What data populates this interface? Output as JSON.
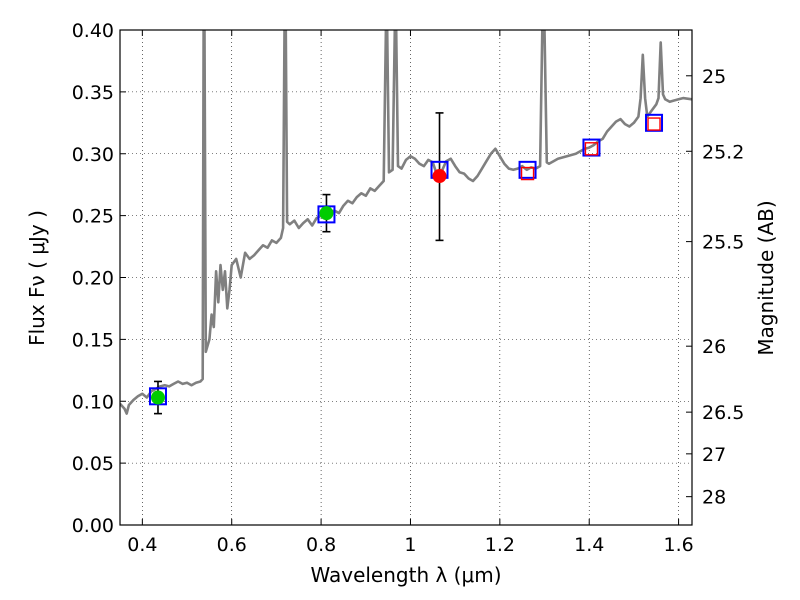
{
  "chart_data": {
    "type": "line",
    "xlabel": "Wavelength  λ (μm)",
    "ylabel_left": "Flux  Fν  ( μJy )",
    "ylabel_right": "Magnitude (AB)",
    "xlim": [
      0.35,
      1.63
    ],
    "ylim": [
      0.0,
      0.4
    ],
    "grid": true,
    "x_ticks": [
      0.4,
      0.6,
      0.8,
      1.0,
      1.2,
      1.4,
      1.6
    ],
    "x_tick_labels": [
      "0.4",
      "0.6",
      "0.8",
      "1",
      "1.2",
      "1.4",
      "1.6"
    ],
    "y_ticks": [
      0.0,
      0.05,
      0.1,
      0.15,
      0.2,
      0.25,
      0.3,
      0.35,
      0.4
    ],
    "y_tick_labels": [
      "0.00",
      "0.05",
      "0.10",
      "0.15",
      "0.20",
      "0.25",
      "0.30",
      "0.35",
      "0.40"
    ],
    "right_ticks": [
      {
        "label": "25",
        "flux": 0.363
      },
      {
        "label": "25.2",
        "flux": 0.302
      },
      {
        "label": "25.5",
        "flux": 0.229
      },
      {
        "label": "26",
        "flux": 0.1445
      },
      {
        "label": "26.5",
        "flux": 0.0912
      },
      {
        "label": "27",
        "flux": 0.0575
      },
      {
        "label": "28",
        "flux": 0.0229
      }
    ],
    "spectrum": {
      "color": "#808080",
      "points": [
        [
          0.35,
          0.098
        ],
        [
          0.36,
          0.094
        ],
        [
          0.365,
          0.09
        ],
        [
          0.37,
          0.097
        ],
        [
          0.38,
          0.101
        ],
        [
          0.39,
          0.104
        ],
        [
          0.4,
          0.106
        ],
        [
          0.41,
          0.103
        ],
        [
          0.42,
          0.108
        ],
        [
          0.43,
          0.11
        ],
        [
          0.44,
          0.112
        ],
        [
          0.45,
          0.113
        ],
        [
          0.46,
          0.112
        ],
        [
          0.47,
          0.114
        ],
        [
          0.48,
          0.116
        ],
        [
          0.49,
          0.114
        ],
        [
          0.5,
          0.115
        ],
        [
          0.51,
          0.113
        ],
        [
          0.52,
          0.115
        ],
        [
          0.53,
          0.116
        ],
        [
          0.535,
          0.118
        ],
        [
          0.537,
          0.4
        ],
        [
          0.539,
          0.4
        ],
        [
          0.542,
          0.14
        ],
        [
          0.55,
          0.15
        ],
        [
          0.555,
          0.17
        ],
        [
          0.56,
          0.16
        ],
        [
          0.565,
          0.205
        ],
        [
          0.57,
          0.18
        ],
        [
          0.575,
          0.21
        ],
        [
          0.58,
          0.19
        ],
        [
          0.585,
          0.205
        ],
        [
          0.59,
          0.175
        ],
        [
          0.595,
          0.19
        ],
        [
          0.6,
          0.21
        ],
        [
          0.61,
          0.215
        ],
        [
          0.62,
          0.2
        ],
        [
          0.63,
          0.22
        ],
        [
          0.64,
          0.215
        ],
        [
          0.65,
          0.218
        ],
        [
          0.66,
          0.222
        ],
        [
          0.67,
          0.226
        ],
        [
          0.68,
          0.224
        ],
        [
          0.69,
          0.23
        ],
        [
          0.7,
          0.228
        ],
        [
          0.71,
          0.232
        ],
        [
          0.715,
          0.24
        ],
        [
          0.718,
          0.4
        ],
        [
          0.721,
          0.4
        ],
        [
          0.724,
          0.245
        ],
        [
          0.73,
          0.243
        ],
        [
          0.74,
          0.246
        ],
        [
          0.75,
          0.24
        ],
        [
          0.76,
          0.244
        ],
        [
          0.77,
          0.247
        ],
        [
          0.78,
          0.242
        ],
        [
          0.79,
          0.248
        ],
        [
          0.8,
          0.25
        ],
        [
          0.81,
          0.252
        ],
        [
          0.82,
          0.253
        ],
        [
          0.83,
          0.254
        ],
        [
          0.84,
          0.252
        ],
        [
          0.85,
          0.258
        ],
        [
          0.86,
          0.262
        ],
        [
          0.87,
          0.26
        ],
        [
          0.88,
          0.265
        ],
        [
          0.89,
          0.268
        ],
        [
          0.9,
          0.266
        ],
        [
          0.91,
          0.272
        ],
        [
          0.92,
          0.27
        ],
        [
          0.93,
          0.274
        ],
        [
          0.94,
          0.278
        ],
        [
          0.945,
          0.4
        ],
        [
          0.948,
          0.4
        ],
        [
          0.952,
          0.285
        ],
        [
          0.96,
          0.287
        ],
        [
          0.965,
          0.4
        ],
        [
          0.968,
          0.4
        ],
        [
          0.972,
          0.29
        ],
        [
          0.98,
          0.288
        ],
        [
          0.99,
          0.295
        ],
        [
          1.0,
          0.298
        ],
        [
          1.01,
          0.296
        ],
        [
          1.02,
          0.292
        ],
        [
          1.03,
          0.29
        ],
        [
          1.04,
          0.295
        ],
        [
          1.05,
          0.293
        ],
        [
          1.06,
          0.282
        ],
        [
          1.07,
          0.286
        ],
        [
          1.08,
          0.294
        ],
        [
          1.09,
          0.296
        ],
        [
          1.1,
          0.29
        ],
        [
          1.11,
          0.285
        ],
        [
          1.12,
          0.284
        ],
        [
          1.13,
          0.28
        ],
        [
          1.14,
          0.278
        ],
        [
          1.15,
          0.282
        ],
        [
          1.16,
          0.288
        ],
        [
          1.17,
          0.294
        ],
        [
          1.18,
          0.3
        ],
        [
          1.19,
          0.304
        ],
        [
          1.2,
          0.298
        ],
        [
          1.21,
          0.292
        ],
        [
          1.22,
          0.288
        ],
        [
          1.23,
          0.287
        ],
        [
          1.24,
          0.288
        ],
        [
          1.25,
          0.29
        ],
        [
          1.26,
          0.287
        ],
        [
          1.27,
          0.289
        ],
        [
          1.28,
          0.288
        ],
        [
          1.29,
          0.29
        ],
        [
          1.295,
          0.4
        ],
        [
          1.3,
          0.4
        ],
        [
          1.305,
          0.293
        ],
        [
          1.31,
          0.292
        ],
        [
          1.32,
          0.294
        ],
        [
          1.33,
          0.296
        ],
        [
          1.34,
          0.297
        ],
        [
          1.35,
          0.298
        ],
        [
          1.36,
          0.299
        ],
        [
          1.37,
          0.3
        ],
        [
          1.38,
          0.302
        ],
        [
          1.39,
          0.304
        ],
        [
          1.4,
          0.305
        ],
        [
          1.41,
          0.307
        ],
        [
          1.42,
          0.31
        ],
        [
          1.43,
          0.312
        ],
        [
          1.44,
          0.318
        ],
        [
          1.45,
          0.322
        ],
        [
          1.46,
          0.326
        ],
        [
          1.47,
          0.328
        ],
        [
          1.48,
          0.324
        ],
        [
          1.49,
          0.322
        ],
        [
          1.5,
          0.325
        ],
        [
          1.51,
          0.33
        ],
        [
          1.515,
          0.345
        ],
        [
          1.52,
          0.38
        ],
        [
          1.525,
          0.345
        ],
        [
          1.53,
          0.33
        ],
        [
          1.54,
          0.335
        ],
        [
          1.55,
          0.34
        ],
        [
          1.555,
          0.345
        ],
        [
          1.56,
          0.39
        ],
        [
          1.565,
          0.348
        ],
        [
          1.57,
          0.344
        ],
        [
          1.58,
          0.342
        ],
        [
          1.59,
          0.343
        ],
        [
          1.6,
          0.344
        ],
        [
          1.61,
          0.345
        ],
        [
          1.63,
          0.344
        ]
      ]
    },
    "model_boxes": {
      "edge_color": "#0000ff",
      "points": [
        {
          "x": 0.435,
          "y": 0.104
        },
        {
          "x": 0.812,
          "y": 0.251
        },
        {
          "x": 1.065,
          "y": 0.287
        },
        {
          "x": 1.262,
          "y": 0.287
        },
        {
          "x": 1.405,
          "y": 0.305
        },
        {
          "x": 1.545,
          "y": 0.325
        }
      ]
    },
    "green_points": {
      "color": "#00cc00",
      "points": [
        {
          "x": 0.435,
          "y": 0.103,
          "err": 0.013
        },
        {
          "x": 0.812,
          "y": 0.252,
          "err": 0.015
        }
      ]
    },
    "red_point": {
      "color": "#ff0000",
      "points": [
        {
          "x": 1.065,
          "y": 0.282,
          "err_up": 0.051,
          "err_down": 0.052
        }
      ]
    },
    "open_red_squares": {
      "edge_color": "#ff0000",
      "points": [
        {
          "x": 1.262,
          "y": 0.284
        },
        {
          "x": 1.405,
          "y": 0.304
        },
        {
          "x": 1.545,
          "y": 0.324
        }
      ]
    }
  }
}
